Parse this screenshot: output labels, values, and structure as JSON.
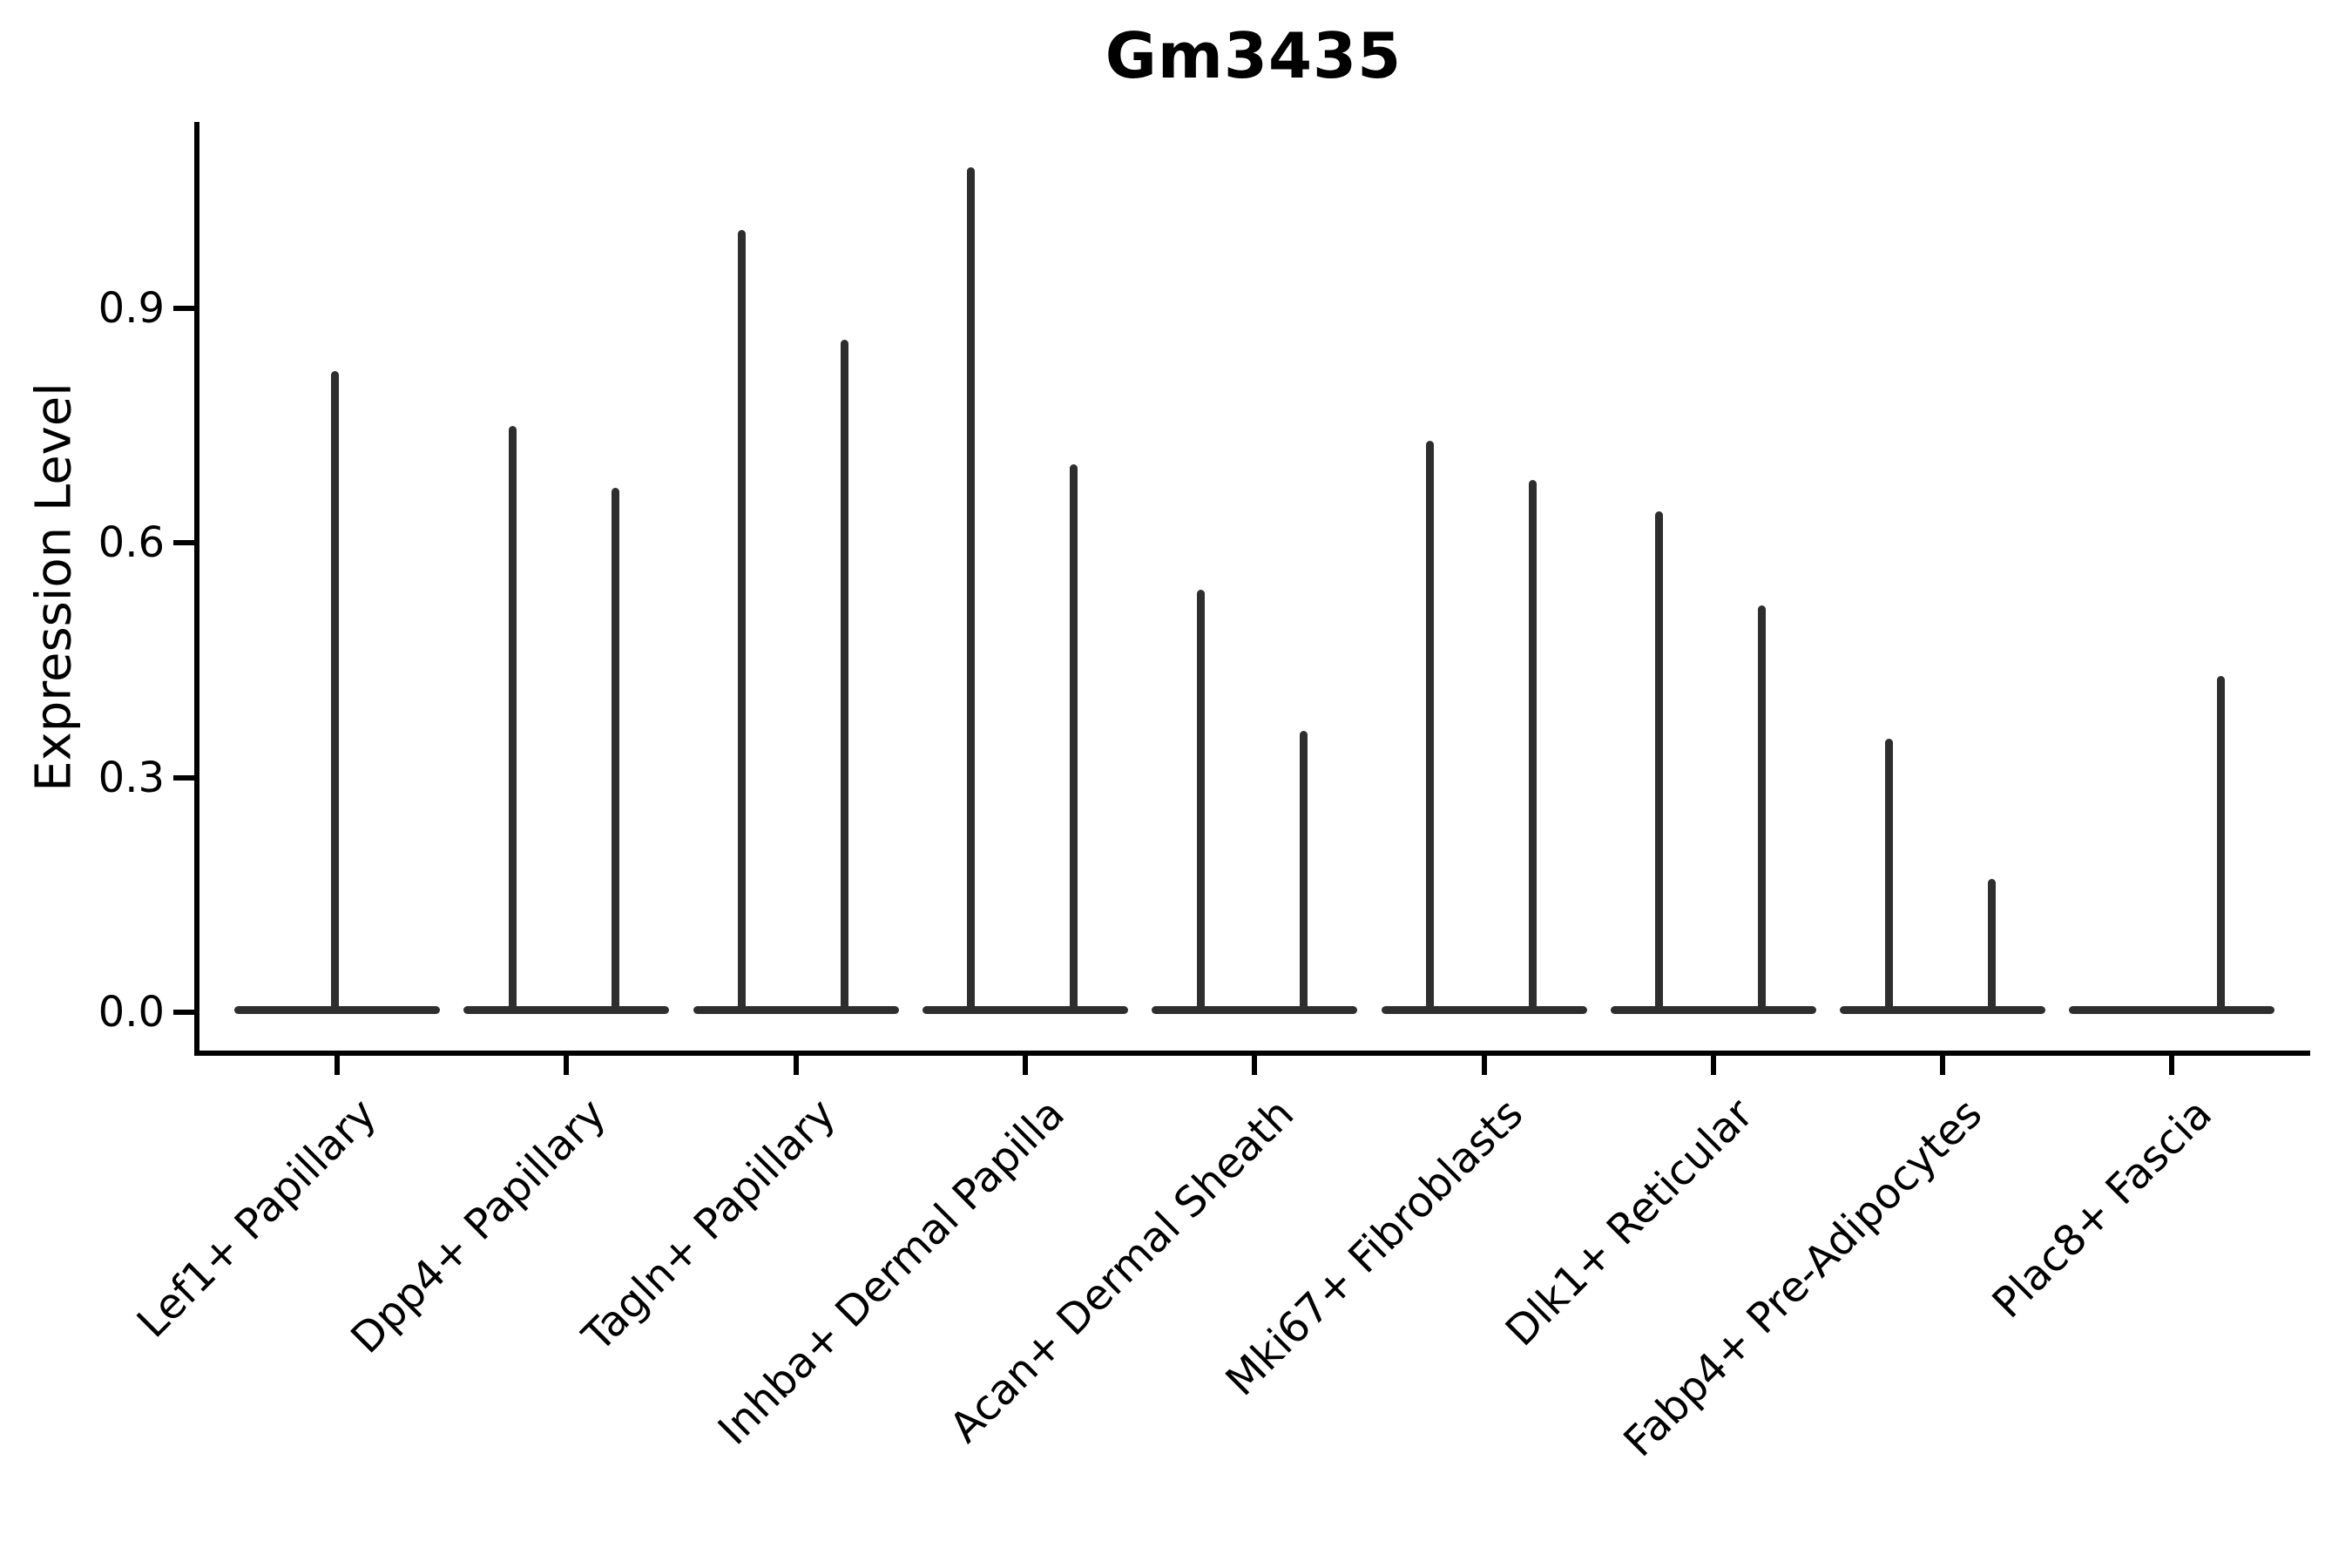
{
  "chart_data": {
    "type": "violin",
    "title": "Gm3435",
    "xlabel": "",
    "ylabel": "Expression Level",
    "categories": [
      "Lef1+ Papillary",
      "Dpp4+ Papillary",
      "Tagln+ Papillary",
      "Inhba+ Dermal Papilla",
      "Acan+ Dermal Sheath",
      "Mki67+ Fibroblasts",
      "Dlk1+ Reticular",
      "Fabp4+ Pre-Adipocytes",
      "Plac8+ Fascia"
    ],
    "series": [
      {
        "category": "Lef1+ Papillary",
        "violins": [
          {
            "side": "center",
            "max": 0.82
          }
        ]
      },
      {
        "category": "Dpp4+ Papillary",
        "violins": [
          {
            "side": "left",
            "max": 0.75
          },
          {
            "side": "right",
            "max": 0.67
          }
        ]
      },
      {
        "category": "Tagln+ Papillary",
        "violins": [
          {
            "side": "left",
            "max": 1.0
          },
          {
            "side": "right",
            "max": 0.86
          }
        ]
      },
      {
        "category": "Inhba+ Dermal Papilla",
        "violins": [
          {
            "side": "left",
            "max": 1.08
          },
          {
            "side": "right",
            "max": 0.7
          }
        ]
      },
      {
        "category": "Acan+ Dermal Sheath",
        "violins": [
          {
            "side": "left",
            "max": 0.54
          },
          {
            "side": "right",
            "max": 0.36
          }
        ]
      },
      {
        "category": "Mki67+ Fibroblasts",
        "violins": [
          {
            "side": "left",
            "max": 0.73
          },
          {
            "side": "right",
            "max": 0.68
          }
        ]
      },
      {
        "category": "Dlk1+ Reticular",
        "violins": [
          {
            "side": "left",
            "max": 0.64
          },
          {
            "side": "right",
            "max": 0.52
          }
        ]
      },
      {
        "category": "Fabp4+ Pre-Adipocytes",
        "violins": [
          {
            "side": "left",
            "max": 0.35
          },
          {
            "side": "right",
            "max": 0.17
          }
        ]
      },
      {
        "category": "Plac8+ Fascia",
        "violins": [
          {
            "side": "right",
            "max": 0.43
          }
        ]
      }
    ],
    "yticks": [
      "0.0",
      "0.3",
      "0.6",
      "0.9"
    ],
    "ytick_values": [
      0.0,
      0.3,
      0.6,
      0.9
    ],
    "ylim": [
      0,
      1.14
    ],
    "grid": false,
    "legend": "none",
    "shape_note": "violins collapsed flat at y=0 with one thin spike rising to each group maximum",
    "violin_color": "#2e2e2e",
    "axis_color": "#000000",
    "text_color": "#000000",
    "background": "#ffffff"
  }
}
